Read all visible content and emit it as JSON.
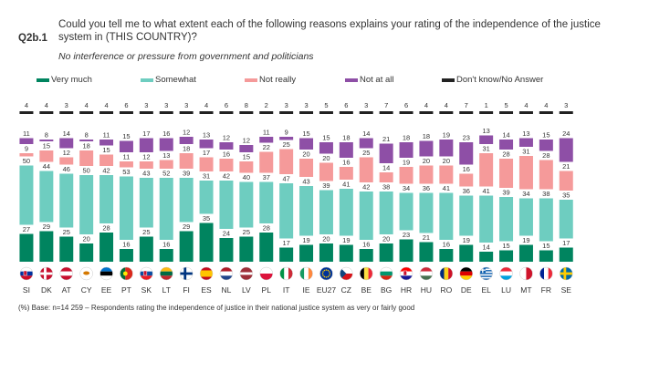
{
  "header": {
    "question_code": "Q2b.1",
    "question_text": "Could you tell me to what extent each of the following reasons explains your rating of the independence of the justice system in (THIS COUNTRY)?",
    "subtitle": "No interference or pressure from government and politicians"
  },
  "footnote": "(%) Base: n=14 259 – Respondents  rating the independence  of justice in their national justice system as very or fairly good",
  "chart_data": {
    "type": "bar",
    "stacked": true,
    "orientation": "vertical",
    "ylim": [
      0,
      100
    ],
    "grid": false,
    "legend_position": "top",
    "categories": [
      "SI",
      "DK",
      "AT",
      "CY",
      "EE",
      "PT",
      "SK",
      "LT",
      "FI",
      "ES",
      "NL",
      "LV",
      "PL",
      "IT",
      "IE",
      "EU27",
      "CZ",
      "BE",
      "BG",
      "HR",
      "HU",
      "RO",
      "DE",
      "EL",
      "LU",
      "MT",
      "FR",
      "SE"
    ],
    "series": [
      {
        "name": "Very much",
        "color": "#00845f",
        "values": [
          27,
          29,
          25,
          20,
          28,
          16,
          25,
          16,
          29,
          35,
          24,
          25,
          28,
          17,
          19,
          20,
          19,
          16,
          20,
          23,
          21,
          16,
          19,
          14,
          15,
          19,
          15,
          17
        ]
      },
      {
        "name": "Somewhat",
        "color": "#6ecdc0",
        "values": [
          50,
          44,
          46,
          50,
          42,
          53,
          43,
          52,
          39,
          31,
          42,
          40,
          37,
          47,
          43,
          39,
          41,
          42,
          38,
          34,
          36,
          41,
          36,
          41,
          39,
          34,
          38,
          35
        ]
      },
      {
        "name": "Not really",
        "color": "#f59a9a",
        "values": [
          9,
          15,
          12,
          18,
          15,
          11,
          12,
          13,
          18,
          17,
          16,
          15,
          22,
          25,
          20,
          20,
          16,
          25,
          14,
          19,
          20,
          20,
          16,
          31,
          28,
          31,
          28,
          21
        ]
      },
      {
        "name": "Not at all",
        "color": "#8e4fa6",
        "values": [
          11,
          8,
          14,
          8,
          11,
          15,
          17,
          16,
          12,
          13,
          12,
          12,
          11,
          9,
          15,
          15,
          18,
          14,
          21,
          18,
          18,
          19,
          23,
          13,
          14,
          13,
          15,
          24
        ]
      },
      {
        "name": "Don't know/No Answer",
        "color": "#222222",
        "values": [
          4,
          4,
          3,
          4,
          4,
          6,
          3,
          3,
          3,
          4,
          6,
          8,
          2,
          3,
          3,
          5,
          6,
          3,
          7,
          6,
          4,
          4,
          7,
          1,
          5,
          4,
          4,
          3
        ]
      }
    ],
    "flags": [
      {
        "code": "SI",
        "colors": [
          "#ffffff",
          "#0032a0",
          "#d00c27"
        ],
        "layout": "h3",
        "emblem": true
      },
      {
        "code": "DK",
        "colors": [
          "#c8102e",
          "#ffffff"
        ],
        "layout": "nordic"
      },
      {
        "code": "AT",
        "colors": [
          "#c8102e",
          "#ffffff",
          "#c8102e"
        ],
        "layout": "h3"
      },
      {
        "code": "CY",
        "colors": [
          "#ffffff",
          "#d57800"
        ],
        "layout": "cy"
      },
      {
        "code": "EE",
        "colors": [
          "#0072ce",
          "#000000",
          "#ffffff"
        ],
        "layout": "h3"
      },
      {
        "code": "PT",
        "colors": [
          "#046a38",
          "#da291c"
        ],
        "layout": "pt"
      },
      {
        "code": "SK",
        "colors": [
          "#ffffff",
          "#0b4ea2",
          "#ee1c25"
        ],
        "layout": "h3",
        "emblem": true
      },
      {
        "code": "LT",
        "colors": [
          "#fdb913",
          "#006a44",
          "#c1272d"
        ],
        "layout": "h3"
      },
      {
        "code": "FI",
        "colors": [
          "#ffffff",
          "#003580"
        ],
        "layout": "nordic"
      },
      {
        "code": "ES",
        "colors": [
          "#c60b1e",
          "#ffc400",
          "#c60b1e"
        ],
        "layout": "es"
      },
      {
        "code": "NL",
        "colors": [
          "#ae1c28",
          "#ffffff",
          "#21468b"
        ],
        "layout": "h3"
      },
      {
        "code": "LV",
        "colors": [
          "#9e3039",
          "#ffffff",
          "#9e3039"
        ],
        "layout": "lv"
      },
      {
        "code": "PL",
        "colors": [
          "#ffffff",
          "#dc143c"
        ],
        "layout": "h2"
      },
      {
        "code": "IT",
        "colors": [
          "#009246",
          "#ffffff",
          "#ce2b37"
        ],
        "layout": "v3"
      },
      {
        "code": "IE",
        "colors": [
          "#169b62",
          "#ffffff",
          "#ff883e"
        ],
        "layout": "v3"
      },
      {
        "code": "EU27",
        "colors": [
          "#003399",
          "#ffcc00"
        ],
        "layout": "eu"
      },
      {
        "code": "CZ",
        "colors": [
          "#ffffff",
          "#d7141a",
          "#11457e"
        ],
        "layout": "cz"
      },
      {
        "code": "BE",
        "colors": [
          "#000000",
          "#fae042",
          "#ed2939"
        ],
        "layout": "v3"
      },
      {
        "code": "BG",
        "colors": [
          "#ffffff",
          "#00966e",
          "#d62612"
        ],
        "layout": "h3"
      },
      {
        "code": "HR",
        "colors": [
          "#ff0000",
          "#ffffff",
          "#171796"
        ],
        "layout": "h3",
        "emblem": true
      },
      {
        "code": "HU",
        "colors": [
          "#ce2939",
          "#ffffff",
          "#477050"
        ],
        "layout": "h3"
      },
      {
        "code": "RO",
        "colors": [
          "#002b7f",
          "#fcd116",
          "#ce1126"
        ],
        "layout": "v3"
      },
      {
        "code": "DE",
        "colors": [
          "#000000",
          "#dd0000",
          "#ffce00"
        ],
        "layout": "h3"
      },
      {
        "code": "EL",
        "colors": [
          "#0d5eaf",
          "#ffffff"
        ],
        "layout": "gr"
      },
      {
        "code": "LU",
        "colors": [
          "#ed2939",
          "#ffffff",
          "#00a1de"
        ],
        "layout": "h3"
      },
      {
        "code": "MT",
        "colors": [
          "#ffffff",
          "#cf142b"
        ],
        "layout": "v2"
      },
      {
        "code": "FR",
        "colors": [
          "#002395",
          "#ffffff",
          "#ed2939"
        ],
        "layout": "v3"
      },
      {
        "code": "SE",
        "colors": [
          "#006aa7",
          "#fecc00"
        ],
        "layout": "nordic"
      }
    ]
  }
}
